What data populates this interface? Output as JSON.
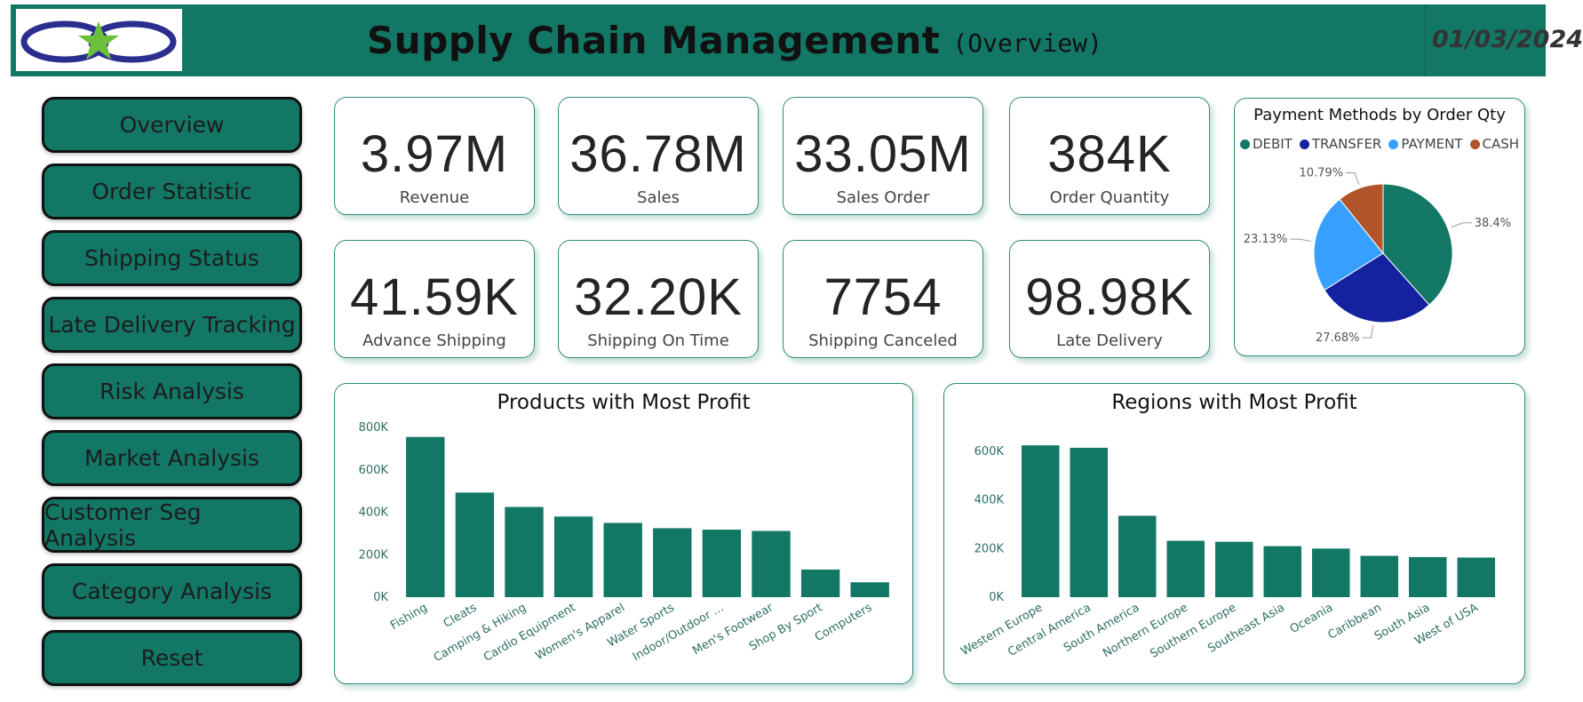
{
  "header": {
    "title": "Supply Chain Management",
    "subtitle": "(Overview)",
    "date": "01/03/2024"
  },
  "nav": [
    {
      "label": "Overview"
    },
    {
      "label": "Order Statistic"
    },
    {
      "label": "Shipping Status"
    },
    {
      "label": "Late Delivery Tracking"
    },
    {
      "label": "Risk Analysis"
    },
    {
      "label": "Market Analysis"
    },
    {
      "label": "Customer Seg Analysis"
    },
    {
      "label": "Category Analysis"
    },
    {
      "label": "Reset"
    }
  ],
  "kpis": [
    {
      "value": "3.97M",
      "label": "Revenue"
    },
    {
      "value": "36.78M",
      "label": "Sales"
    },
    {
      "value": "33.05M",
      "label": "Sales Order"
    },
    {
      "value": "384K",
      "label": "Order Quantity"
    },
    {
      "value": "41.59K",
      "label": "Advance Shipping"
    },
    {
      "value": "32.20K",
      "label": "Shipping On Time"
    },
    {
      "value": "7754",
      "label": "Shipping Canceled"
    },
    {
      "value": "98.98K",
      "label": "Late Delivery"
    }
  ],
  "colors": {
    "brand": "#137766",
    "debit": "#137766",
    "transfer": "#1422a0",
    "payment": "#37a0ff",
    "cash": "#b0552a"
  },
  "chart_data": [
    {
      "type": "pie",
      "title": "Payment Methods by Order Qty",
      "legend": [
        "DEBIT",
        "TRANSFER",
        "PAYMENT",
        "CASH"
      ],
      "values": [
        38.4,
        27.68,
        23.13,
        10.79
      ],
      "labels": [
        "38.4%",
        "27.68%",
        "23.13%",
        "10.79%"
      ]
    },
    {
      "type": "bar",
      "title": "Products with Most Profit",
      "categories": [
        "Fishing",
        "Cleats",
        "Camping & Hiking",
        "Cardio Equipment",
        "Women's Apparel",
        "Water Sports",
        "Indoor/Outdoor ...",
        "Men's Footwear",
        "Shop By Sport",
        "Computers"
      ],
      "values": [
        755000,
        493000,
        425000,
        380000,
        350000,
        325000,
        318000,
        312000,
        130000,
        70000
      ],
      "ylim": [
        0,
        800000
      ],
      "yticks": [
        "0K",
        "200K",
        "400K",
        "600K",
        "800K"
      ]
    },
    {
      "type": "bar",
      "title": "Regions with Most Profit",
      "categories": [
        "Western Europe",
        "Central America",
        "South America",
        "Northern Europe",
        "Southern Europe",
        "Southeast Asia",
        "Oceania",
        "Caribbean",
        "South Asia",
        "West of USA"
      ],
      "values": [
        625000,
        615000,
        335000,
        232000,
        228000,
        210000,
        200000,
        170000,
        165000,
        163000
      ],
      "ylim": [
        0,
        600000
      ],
      "yticks": [
        "0K",
        "200K",
        "400K",
        "600K"
      ]
    }
  ]
}
